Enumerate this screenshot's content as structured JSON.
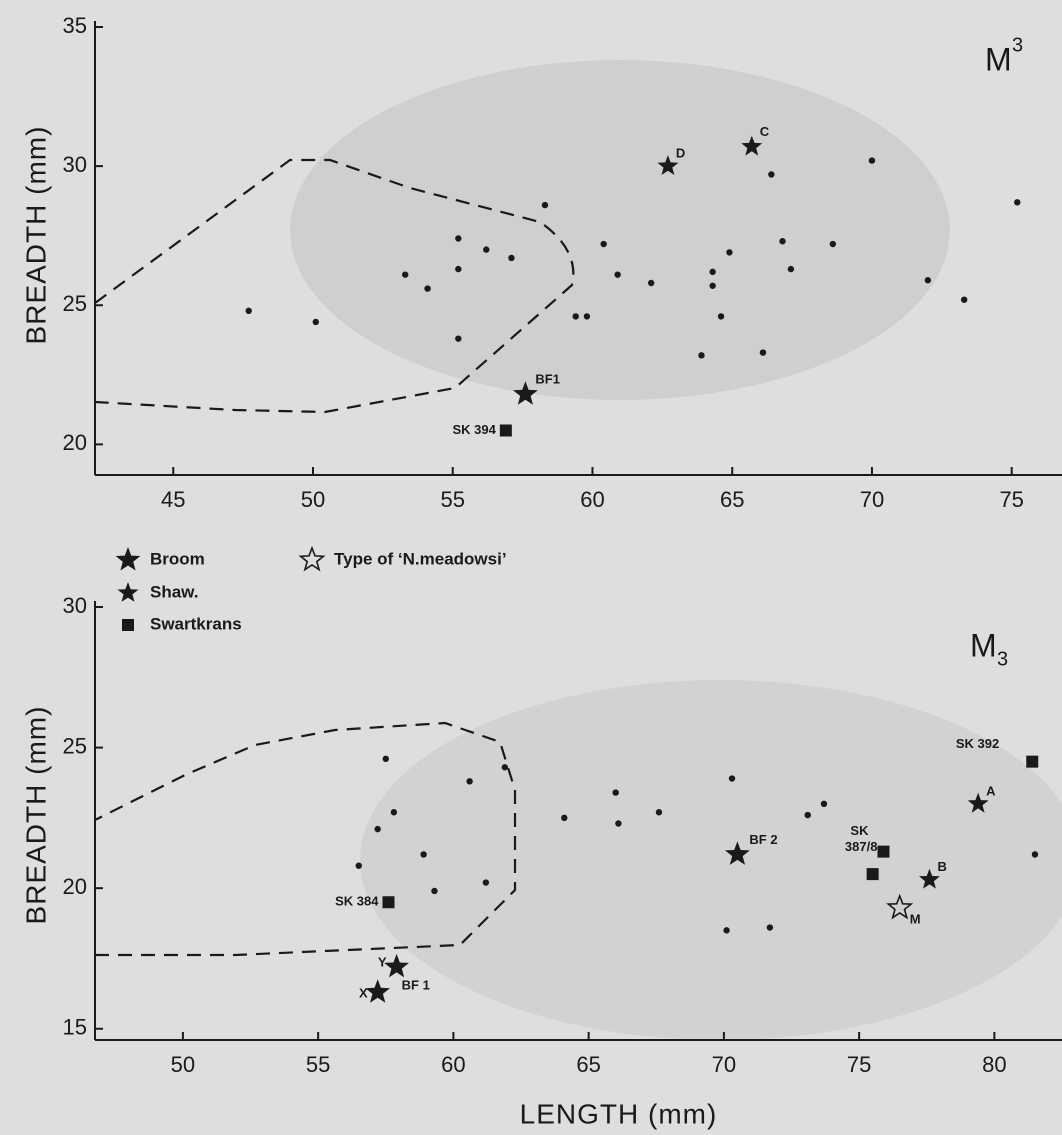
{
  "chart_data": [
    {
      "type": "scatter",
      "panel_label": {
        "letter": "M",
        "index": "3",
        "position": "superscript"
      },
      "y_label": "BREADTH (mm)",
      "xlim": [
        42.2,
        76.8
      ],
      "ylim": [
        18.9,
        35
      ],
      "xticks": [
        45,
        50,
        55,
        60,
        65,
        70,
        75
      ],
      "yticks": [
        20,
        25,
        30,
        35
      ],
      "grid": false,
      "series": [
        {
          "marker": "dot",
          "color": "#1a1a1a",
          "x": [
            47.7,
            50.1,
            58.3,
            55.2,
            56.2,
            57.1,
            55.2,
            53.3,
            54.1,
            55.2,
            59.4,
            59.8,
            60.4,
            60.9,
            62.1,
            64.3,
            64.3,
            64.9,
            64.6,
            63.9,
            66.4,
            66.8,
            67.1,
            66.1,
            68.6,
            70.0,
            72.0,
            73.3,
            75.2
          ],
          "values": [
            24.8,
            24.4,
            28.6,
            27.4,
            27.0,
            26.7,
            26.3,
            26.1,
            25.6,
            23.8,
            24.6,
            24.6,
            27.2,
            26.1,
            25.8,
            26.2,
            25.7,
            26.9,
            24.6,
            23.2,
            29.7,
            27.3,
            26.3,
            23.3,
            27.2,
            30.2,
            25.9,
            25.2,
            28.7
          ]
        },
        {
          "marker": "star",
          "color": "#1a1a1a",
          "x": [
            57.6
          ],
          "values": [
            21.8
          ],
          "point_labels": [
            "BF1"
          ]
        },
        {
          "marker": "small-star",
          "color": "#1a1a1a",
          "x": [
            62.7,
            65.7
          ],
          "values": [
            30.0,
            30.7
          ],
          "point_labels": [
            "D",
            "C"
          ]
        },
        {
          "marker": "square",
          "color": "#1a1a1a",
          "x": [
            56.9
          ],
          "values": [
            20.5
          ],
          "point_labels": [
            "SK 394"
          ]
        }
      ]
    },
    {
      "type": "scatter",
      "panel_label": {
        "letter": "M",
        "index": "3",
        "position": "subscript"
      },
      "x_label": "LENGTH (mm)",
      "y_label": "BREADTH (mm)",
      "xlim": [
        46.75,
        82.5
      ],
      "ylim": [
        14.6,
        30
      ],
      "xticks": [
        50,
        55,
        60,
        65,
        70,
        75,
        80
      ],
      "yticks": [
        15,
        20,
        25,
        30
      ],
      "grid": false,
      "annotations": [
        "BF 1"
      ],
      "series": [
        {
          "marker": "dot",
          "color": "#1a1a1a",
          "x": [
            57.5,
            60.6,
            61.9,
            57.2,
            57.8,
            58.9,
            56.5,
            59.3,
            61.2,
            64.1,
            66.1,
            66.0,
            67.6,
            70.3,
            73.1,
            73.7,
            70.1,
            71.7,
            81.5
          ],
          "values": [
            24.6,
            23.8,
            24.3,
            22.1,
            22.7,
            21.2,
            20.8,
            19.9,
            20.2,
            22.5,
            22.3,
            23.4,
            22.7,
            23.9,
            22.6,
            23.0,
            18.5,
            18.6,
            21.2
          ]
        },
        {
          "name": "Broom",
          "marker": "star",
          "color": "#1a1a1a",
          "x": [
            70.5,
            57.9,
            57.2
          ],
          "values": [
            21.2,
            17.2,
            16.3
          ],
          "point_labels": [
            "BF 2",
            "Y",
            "X"
          ]
        },
        {
          "name": "Shaw.",
          "marker": "small-star",
          "color": "#1a1a1a",
          "x": [
            79.4,
            77.6
          ],
          "values": [
            23.0,
            20.3
          ],
          "point_labels": [
            "A",
            "B"
          ]
        },
        {
          "name": "Swartkrans",
          "marker": "square",
          "color": "#1a1a1a",
          "x": [
            81.4,
            75.9,
            75.5,
            57.6
          ],
          "values": [
            24.5,
            21.3,
            20.5,
            19.5
          ],
          "point_labels": [
            "SK 392",
            [
              "SK",
              "387/8"
            ],
            null,
            "SK 384"
          ]
        },
        {
          "name": "Type of ‘N.meadowsi’",
          "marker": "open-star",
          "color": "#1a1a1a",
          "x": [
            76.5
          ],
          "values": [
            19.3
          ],
          "point_labels": [
            "M"
          ]
        }
      ]
    }
  ]
}
